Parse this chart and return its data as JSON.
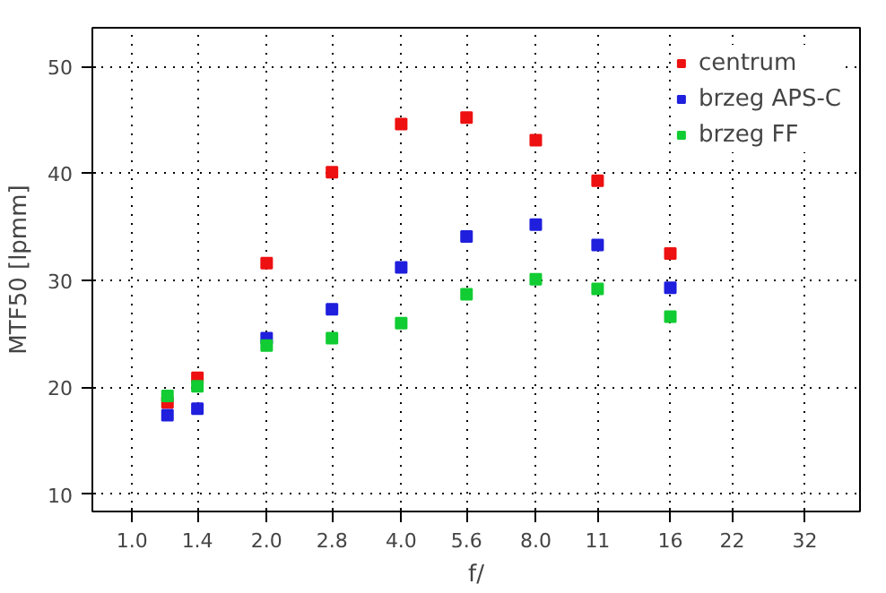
{
  "chart_data": {
    "type": "scatter",
    "xlabel": "f/",
    "ylabel": "MTF50 [lpmm]",
    "x": [
      1.2,
      1.4,
      2.0,
      2.8,
      4.0,
      5.6,
      8.0,
      11,
      16
    ],
    "series": [
      {
        "name": "centrum",
        "color": "#ee1111",
        "values": [
          18.6,
          20.9,
          31.6,
          40.1,
          44.6,
          45.2,
          43.1,
          39.3,
          32.5
        ]
      },
      {
        "name": "brzeg APS-C",
        "color": "#1f1fdd",
        "values": [
          17.4,
          18.0,
          24.6,
          27.3,
          31.2,
          34.1,
          35.2,
          33.3,
          29.3
        ]
      },
      {
        "name": "brzeg FF",
        "color": "#11cc33",
        "values": [
          19.2,
          20.1,
          23.9,
          24.6,
          26.0,
          28.7,
          30.1,
          29.2,
          26.6
        ]
      }
    ],
    "log": "x",
    "xlim": [
      0.815,
      42.5
    ],
    "ylim": [
      8.4,
      53.6
    ],
    "xticks": [
      {
        "value": 1,
        "label": "1.0"
      },
      1.4,
      {
        "value": 2,
        "label": "2.0"
      },
      2.8,
      {
        "value": 4,
        "label": "4.0"
      },
      5.6,
      {
        "value": 8,
        "label": "8.0"
      },
      11,
      16,
      22,
      32
    ],
    "yticks": [
      10,
      20,
      30,
      40,
      50
    ],
    "grid": true,
    "legend": "top right",
    "marker": "square"
  }
}
